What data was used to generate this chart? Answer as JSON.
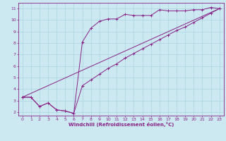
{
  "xlabel": "Windchill (Refroidissement éolien,°C)",
  "background_color": "#cce8f0",
  "grid_color": "#b0d8e4",
  "line_color": "#882288",
  "xlim": [
    -0.5,
    23.5
  ],
  "ylim": [
    1.7,
    11.5
  ],
  "xticks": [
    0,
    1,
    2,
    3,
    4,
    5,
    6,
    7,
    8,
    9,
    10,
    11,
    12,
    13,
    14,
    15,
    16,
    17,
    18,
    19,
    20,
    21,
    22,
    23
  ],
  "yticks": [
    2,
    3,
    4,
    5,
    6,
    7,
    8,
    9,
    10,
    11
  ],
  "curve1_x": [
    0,
    1,
    2,
    3,
    4,
    5,
    6,
    7,
    8,
    9,
    10,
    11,
    12,
    13,
    14,
    15,
    16,
    17,
    18,
    19,
    20,
    21,
    22,
    23
  ],
  "curve1_y": [
    3.3,
    3.3,
    2.5,
    2.8,
    2.2,
    2.1,
    1.9,
    8.1,
    9.3,
    9.9,
    10.1,
    10.1,
    10.5,
    10.4,
    10.4,
    10.4,
    10.9,
    10.8,
    10.8,
    10.8,
    10.9,
    10.9,
    11.1,
    11.0
  ],
  "curve2_x": [
    0,
    1,
    2,
    3,
    4,
    5,
    6,
    7,
    8,
    9,
    10,
    11,
    12,
    13,
    14,
    15,
    16,
    17,
    18,
    19,
    20,
    21,
    22,
    23
  ],
  "curve2_y": [
    3.3,
    3.3,
    2.5,
    2.8,
    2.2,
    2.1,
    1.9,
    4.3,
    4.8,
    5.3,
    5.8,
    6.2,
    6.7,
    7.1,
    7.5,
    7.9,
    8.3,
    8.7,
    9.1,
    9.4,
    9.8,
    10.2,
    10.6,
    11.0
  ],
  "curve3_x": [
    0,
    23
  ],
  "curve3_y": [
    3.3,
    11.0
  ]
}
